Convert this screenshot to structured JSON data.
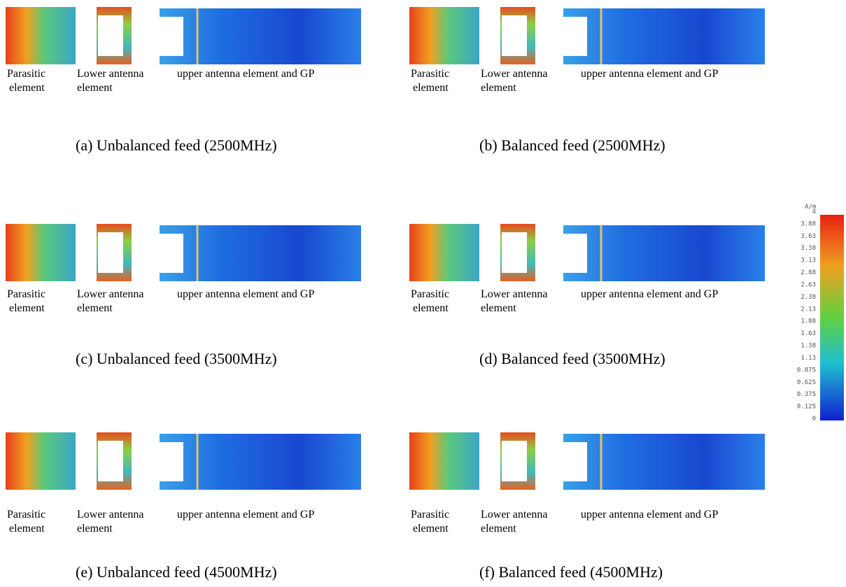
{
  "panels": [
    {
      "parasitic": [
        "Parasitic",
        "element"
      ],
      "lower": [
        "Lower antenna",
        "element"
      ],
      "upper": "upper antenna element and GP",
      "caption": "(a) Unbalanced feed (2500MHz)"
    },
    {
      "parasitic": [
        "Parasitic",
        "element"
      ],
      "lower": [
        "Lower antenna",
        "element"
      ],
      "upper": "upper antenna element and GP",
      "caption": "(b) Balanced feed (2500MHz)"
    },
    {
      "parasitic": [
        "Parasitic",
        "element"
      ],
      "lower": [
        "Lower antenna",
        "element"
      ],
      "upper": "upper antenna element and GP",
      "caption": "(c) Unbalanced feed (3500MHz)"
    },
    {
      "parasitic": [
        "Parasitic",
        "element"
      ],
      "lower": [
        "Lower antenna",
        "element"
      ],
      "upper": "upper antenna element and GP",
      "caption": "(d) Balanced feed (3500MHz)"
    },
    {
      "parasitic": [
        "Parasitic",
        "element"
      ],
      "lower": [
        "Lower antenna",
        "element"
      ],
      "upper": "upper antenna element and GP",
      "caption": "(e) Unbalanced feed (4500MHz)"
    },
    {
      "parasitic": [
        "Parasitic",
        "element"
      ],
      "lower": [
        "Lower antenna",
        "element"
      ],
      "upper": "upper antenna element and GP",
      "caption": "(f) Balanced feed (4500MHz)"
    }
  ],
  "colorbar": {
    "unit": "A/m",
    "labels": [
      "4",
      "3.88",
      "3.63",
      "3.38",
      "3.13",
      "2.88",
      "2.63",
      "2.38",
      "2.13",
      "1.88",
      "1.63",
      "1.38",
      "1.13",
      "0.875",
      "0.625",
      "0.375",
      "0.125",
      "0"
    ]
  }
}
